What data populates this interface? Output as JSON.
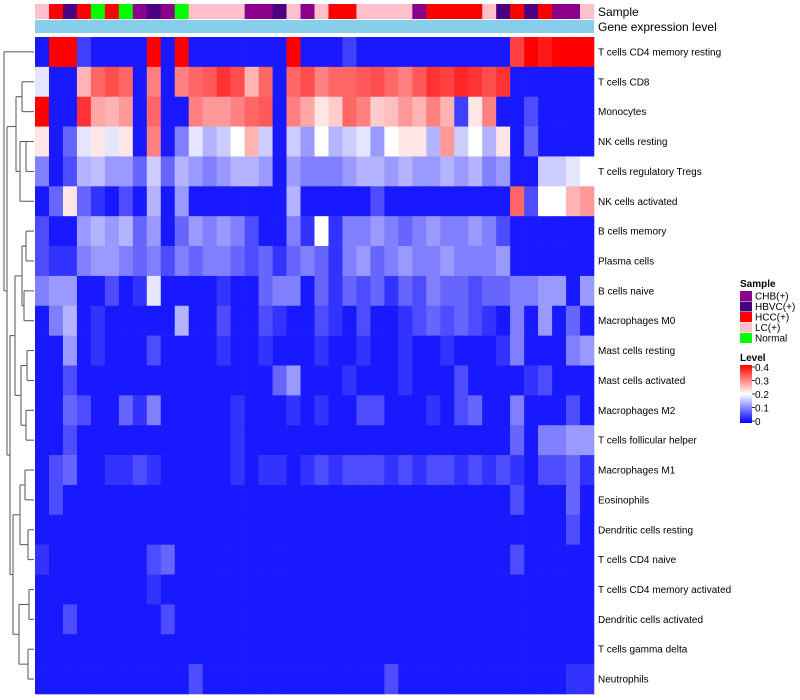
{
  "chart_data": {
    "type": "heatmap",
    "title": "",
    "annotation_tracks": [
      {
        "name": "Sample",
        "label": "Sample"
      },
      {
        "name": "Gene expression level",
        "label": "Gene expression level"
      }
    ],
    "gene_expression_level_color": "#87CEEB",
    "sample_groups": [
      "LC(+)",
      "HCC(+)",
      "HBVC(+)",
      "HCC(+)",
      "Normal",
      "HCC(+)",
      "Normal",
      "CHB(+)",
      "HBVC(+)",
      "CHB(+)",
      "Normal",
      "LC(+)",
      "LC(+)",
      "LC(+)",
      "LC(+)",
      "CHB(+)",
      "CHB(+)",
      "HBVC(+)",
      "LC(+)",
      "CHB(+)",
      "LC(+)",
      "HCC(+)",
      "HCC(+)",
      "LC(+)",
      "LC(+)",
      "LC(+)",
      "LC(+)",
      "CHB(+)",
      "HCC(+)",
      "HCC(+)",
      "HCC(+)",
      "HCC(+)",
      "LC(+)",
      "HBVC(+)",
      "HCC(+)",
      "HBVC(+)",
      "HCC(+)",
      "CHB(+)",
      "CHB(+)",
      "LC(+)"
    ],
    "rows": [
      "T cells CD4 memory resting",
      "T cells CD8",
      "Monocytes",
      "NK cells resting",
      "T cells regulatory  Tregs",
      "NK cells activated",
      "B cells memory",
      "Plasma cells",
      "B cells naive",
      "Macrophages M0",
      "Mast cells resting",
      "Mast cells activated",
      "Macrophages M2",
      "T cells follicular helper",
      "Macrophages M1",
      "Eosinophils",
      "Dendritic cells resting",
      "T cells CD4 naive",
      "T cells CD4 memory activated",
      "Dendritic cells activated",
      "T cells gamma delta",
      "Neutrophils"
    ],
    "values": [
      [
        0.02,
        0.4,
        0.4,
        0.05,
        0.02,
        0.02,
        0.02,
        0.02,
        0.4,
        0.02,
        0.4,
        0.02,
        0.02,
        0.02,
        0.02,
        0.02,
        0.02,
        0.02,
        0.4,
        0.02,
        0.02,
        0.02,
        0.05,
        0.02,
        0.02,
        0.02,
        0.02,
        0.02,
        0.02,
        0.02,
        0.02,
        0.02,
        0.02,
        0.02,
        0.35,
        0.4,
        0.38,
        0.4,
        0.4,
        0.4
      ],
      [
        0.18,
        0.02,
        0.02,
        0.26,
        0.32,
        0.34,
        0.32,
        0.02,
        0.3,
        0.02,
        0.3,
        0.32,
        0.33,
        0.36,
        0.34,
        0.26,
        0.32,
        0.02,
        0.32,
        0.34,
        0.3,
        0.32,
        0.32,
        0.33,
        0.34,
        0.32,
        0.3,
        0.33,
        0.36,
        0.35,
        0.37,
        0.36,
        0.34,
        0.36,
        0.02,
        0.02,
        0.02,
        0.02,
        0.02,
        0.02
      ],
      [
        0.4,
        0.02,
        0.02,
        0.36,
        0.27,
        0.26,
        0.28,
        0.02,
        0.32,
        0.02,
        0.02,
        0.3,
        0.28,
        0.28,
        0.3,
        0.32,
        0.33,
        0.02,
        0.3,
        0.27,
        0.22,
        0.24,
        0.32,
        0.3,
        0.24,
        0.25,
        0.28,
        0.26,
        0.3,
        0.26,
        0.05,
        0.22,
        0.3,
        0.02,
        0.02,
        0.06,
        0.02,
        0.02,
        0.02,
        0.02
      ],
      [
        0.22,
        0.02,
        0.08,
        0.18,
        0.22,
        0.18,
        0.22,
        0.02,
        0.3,
        0.02,
        0.1,
        0.18,
        0.14,
        0.16,
        0.2,
        0.26,
        0.16,
        0.02,
        0.16,
        0.12,
        0.2,
        0.14,
        0.16,
        0.18,
        0.12,
        0.2,
        0.22,
        0.22,
        0.14,
        0.28,
        0.16,
        0.2,
        0.14,
        0.22,
        0.02,
        0.08,
        0.02,
        0.02,
        0.02,
        0.02
      ],
      [
        0.1,
        0.02,
        0.06,
        0.14,
        0.15,
        0.12,
        0.12,
        0.08,
        0.16,
        0.08,
        0.14,
        0.12,
        0.1,
        0.12,
        0.14,
        0.14,
        0.12,
        0.02,
        0.12,
        0.1,
        0.1,
        0.1,
        0.12,
        0.14,
        0.14,
        0.12,
        0.14,
        0.12,
        0.12,
        0.14,
        0.12,
        0.14,
        0.1,
        0.12,
        0.02,
        0.02,
        0.16,
        0.16,
        0.18,
        0.2
      ],
      [
        0.02,
        0.08,
        0.22,
        0.08,
        0.04,
        0.02,
        0.06,
        0.02,
        0.14,
        0.02,
        0.12,
        0.02,
        0.02,
        0.02,
        0.02,
        0.02,
        0.02,
        0.02,
        0.14,
        0.02,
        0.02,
        0.02,
        0.02,
        0.02,
        0.06,
        0.02,
        0.02,
        0.02,
        0.02,
        0.02,
        0.02,
        0.02,
        0.02,
        0.02,
        0.32,
        0.06,
        0.2,
        0.2,
        0.26,
        0.28
      ],
      [
        0.06,
        0.02,
        0.02,
        0.12,
        0.14,
        0.12,
        0.14,
        0.08,
        0.12,
        0.02,
        0.08,
        0.12,
        0.1,
        0.12,
        0.1,
        0.06,
        0.02,
        0.02,
        0.1,
        0.04,
        0.2,
        0.04,
        0.1,
        0.1,
        0.12,
        0.1,
        0.08,
        0.1,
        0.12,
        0.1,
        0.1,
        0.12,
        0.1,
        0.06,
        0.02,
        0.02,
        0.02,
        0.02,
        0.02,
        0.02
      ],
      [
        0.06,
        0.04,
        0.04,
        0.1,
        0.12,
        0.12,
        0.1,
        0.08,
        0.1,
        0.06,
        0.1,
        0.08,
        0.1,
        0.1,
        0.08,
        0.06,
        0.08,
        0.04,
        0.08,
        0.1,
        0.08,
        0.04,
        0.1,
        0.12,
        0.08,
        0.1,
        0.12,
        0.1,
        0.1,
        0.12,
        0.1,
        0.1,
        0.1,
        0.12,
        0.02,
        0.02,
        0.02,
        0.02,
        0.02,
        0.02
      ],
      [
        0.1,
        0.12,
        0.12,
        0.02,
        0.02,
        0.06,
        0.02,
        0.04,
        0.18,
        0.02,
        0.02,
        0.02,
        0.02,
        0.04,
        0.02,
        0.02,
        0.08,
        0.1,
        0.1,
        0.02,
        0.08,
        0.04,
        0.08,
        0.06,
        0.08,
        0.04,
        0.08,
        0.06,
        0.1,
        0.08,
        0.08,
        0.06,
        0.08,
        0.08,
        0.1,
        0.1,
        0.12,
        0.12,
        0.02,
        0.12
      ],
      [
        0.02,
        0.1,
        0.14,
        0.02,
        0.04,
        0.02,
        0.02,
        0.02,
        0.02,
        0.02,
        0.14,
        0.02,
        0.02,
        0.06,
        0.02,
        0.02,
        0.06,
        0.04,
        0.02,
        0.02,
        0.06,
        0.04,
        0.02,
        0.06,
        0.02,
        0.02,
        0.04,
        0.06,
        0.08,
        0.06,
        0.08,
        0.06,
        0.04,
        0.02,
        0.1,
        0.02,
        0.12,
        0.02,
        0.08,
        0.02
      ],
      [
        0.02,
        0.02,
        0.12,
        0.02,
        0.04,
        0.02,
        0.02,
        0.02,
        0.06,
        0.02,
        0.02,
        0.02,
        0.02,
        0.04,
        0.02,
        0.02,
        0.04,
        0.02,
        0.02,
        0.02,
        0.04,
        0.02,
        0.02,
        0.04,
        0.02,
        0.02,
        0.04,
        0.02,
        0.02,
        0.04,
        0.02,
        0.02,
        0.02,
        0.04,
        0.1,
        0.02,
        0.02,
        0.02,
        0.1,
        0.12
      ],
      [
        0.02,
        0.02,
        0.06,
        0.02,
        0.02,
        0.02,
        0.02,
        0.02,
        0.02,
        0.02,
        0.02,
        0.02,
        0.02,
        0.02,
        0.02,
        0.02,
        0.02,
        0.08,
        0.12,
        0.02,
        0.02,
        0.02,
        0.04,
        0.02,
        0.02,
        0.02,
        0.04,
        0.02,
        0.02,
        0.02,
        0.06,
        0.02,
        0.02,
        0.02,
        0.02,
        0.04,
        0.06,
        0.02,
        0.02,
        0.02
      ],
      [
        0.02,
        0.02,
        0.08,
        0.06,
        0.02,
        0.02,
        0.08,
        0.04,
        0.1,
        0.02,
        0.02,
        0.02,
        0.02,
        0.02,
        0.04,
        0.02,
        0.02,
        0.02,
        0.04,
        0.02,
        0.04,
        0.02,
        0.02,
        0.06,
        0.06,
        0.02,
        0.02,
        0.02,
        0.04,
        0.02,
        0.06,
        0.08,
        0.02,
        0.02,
        0.1,
        0.02,
        0.02,
        0.02,
        0.06,
        0.02
      ],
      [
        0.02,
        0.02,
        0.06,
        0.02,
        0.02,
        0.02,
        0.02,
        0.02,
        0.02,
        0.02,
        0.02,
        0.02,
        0.02,
        0.02,
        0.04,
        0.02,
        0.02,
        0.02,
        0.02,
        0.02,
        0.02,
        0.02,
        0.02,
        0.02,
        0.02,
        0.02,
        0.02,
        0.02,
        0.02,
        0.02,
        0.02,
        0.02,
        0.02,
        0.02,
        0.08,
        0.02,
        0.1,
        0.1,
        0.12,
        0.12
      ],
      [
        0.02,
        0.06,
        0.08,
        0.02,
        0.02,
        0.04,
        0.04,
        0.06,
        0.04,
        0.02,
        0.02,
        0.02,
        0.02,
        0.02,
        0.04,
        0.02,
        0.04,
        0.04,
        0.02,
        0.04,
        0.06,
        0.04,
        0.06,
        0.06,
        0.06,
        0.04,
        0.06,
        0.04,
        0.06,
        0.06,
        0.04,
        0.06,
        0.04,
        0.06,
        0.04,
        0.02,
        0.06,
        0.06,
        0.08,
        0.04
      ],
      [
        0.02,
        0.06,
        0.02,
        0.02,
        0.02,
        0.02,
        0.02,
        0.02,
        0.02,
        0.02,
        0.02,
        0.02,
        0.02,
        0.02,
        0.02,
        0.02,
        0.02,
        0.02,
        0.02,
        0.02,
        0.02,
        0.02,
        0.02,
        0.02,
        0.02,
        0.02,
        0.02,
        0.02,
        0.02,
        0.02,
        0.02,
        0.02,
        0.02,
        0.02,
        0.06,
        0.02,
        0.02,
        0.02,
        0.08,
        0.02
      ],
      [
        0.02,
        0.02,
        0.02,
        0.02,
        0.02,
        0.02,
        0.02,
        0.02,
        0.02,
        0.02,
        0.02,
        0.02,
        0.02,
        0.02,
        0.02,
        0.02,
        0.02,
        0.02,
        0.02,
        0.02,
        0.02,
        0.02,
        0.02,
        0.02,
        0.02,
        0.02,
        0.02,
        0.02,
        0.02,
        0.02,
        0.02,
        0.02,
        0.02,
        0.02,
        0.02,
        0.02,
        0.02,
        0.02,
        0.06,
        0.02
      ],
      [
        0.04,
        0.02,
        0.02,
        0.02,
        0.02,
        0.02,
        0.02,
        0.02,
        0.06,
        0.08,
        0.02,
        0.02,
        0.02,
        0.02,
        0.02,
        0.02,
        0.02,
        0.02,
        0.02,
        0.02,
        0.02,
        0.02,
        0.02,
        0.02,
        0.02,
        0.02,
        0.02,
        0.02,
        0.02,
        0.02,
        0.02,
        0.02,
        0.02,
        0.02,
        0.06,
        0.02,
        0.02,
        0.02,
        0.02,
        0.02
      ],
      [
        0.02,
        0.02,
        0.02,
        0.02,
        0.02,
        0.02,
        0.02,
        0.02,
        0.04,
        0.02,
        0.02,
        0.02,
        0.02,
        0.02,
        0.02,
        0.02,
        0.02,
        0.02,
        0.02,
        0.02,
        0.02,
        0.02,
        0.02,
        0.02,
        0.02,
        0.02,
        0.02,
        0.02,
        0.02,
        0.02,
        0.02,
        0.02,
        0.02,
        0.02,
        0.02,
        0.02,
        0.02,
        0.02,
        0.02,
        0.02
      ],
      [
        0.02,
        0.02,
        0.06,
        0.02,
        0.02,
        0.02,
        0.02,
        0.02,
        0.02,
        0.06,
        0.02,
        0.02,
        0.02,
        0.02,
        0.02,
        0.02,
        0.02,
        0.02,
        0.02,
        0.02,
        0.02,
        0.02,
        0.02,
        0.02,
        0.02,
        0.02,
        0.02,
        0.02,
        0.02,
        0.02,
        0.02,
        0.02,
        0.02,
        0.02,
        0.02,
        0.02,
        0.02,
        0.02,
        0.02,
        0.02
      ],
      [
        0.02,
        0.02,
        0.02,
        0.02,
        0.02,
        0.02,
        0.02,
        0.02,
        0.02,
        0.02,
        0.02,
        0.02,
        0.02,
        0.02,
        0.02,
        0.02,
        0.02,
        0.02,
        0.02,
        0.02,
        0.02,
        0.02,
        0.02,
        0.02,
        0.02,
        0.02,
        0.02,
        0.02,
        0.02,
        0.02,
        0.02,
        0.02,
        0.02,
        0.02,
        0.02,
        0.02,
        0.02,
        0.02,
        0.02,
        0.02
      ],
      [
        0.02,
        0.02,
        0.02,
        0.02,
        0.02,
        0.02,
        0.02,
        0.02,
        0.02,
        0.02,
        0.02,
        0.06,
        0.02,
        0.02,
        0.02,
        0.02,
        0.02,
        0.02,
        0.02,
        0.02,
        0.02,
        0.02,
        0.02,
        0.02,
        0.02,
        0.06,
        0.02,
        0.02,
        0.02,
        0.02,
        0.02,
        0.02,
        0.02,
        0.02,
        0.02,
        0.02,
        0.02,
        0.02,
        0.04,
        0.04
      ]
    ],
    "color_scale": {
      "min": 0,
      "max": 0.4,
      "low_color": "#0000FF",
      "mid_color": "#FFFFFF",
      "high_color": "#FF0000",
      "mid_value": 0.2
    },
    "legends": {
      "sample": {
        "title": "Sample",
        "entries": [
          {
            "label": "CHB(+)",
            "color": "#8B008B"
          },
          {
            "label": "HBVC(+)",
            "color": "#4B0082"
          },
          {
            "label": "HCC(+)",
            "color": "#FF0000"
          },
          {
            "label": "LC(+)",
            "color": "#FFC0CB"
          },
          {
            "label": "Normal",
            "color": "#00FF00"
          }
        ]
      },
      "level": {
        "title": "Level",
        "ticks": [
          "0.4",
          "0.3",
          "0.2",
          "0.1",
          "0"
        ]
      }
    }
  }
}
